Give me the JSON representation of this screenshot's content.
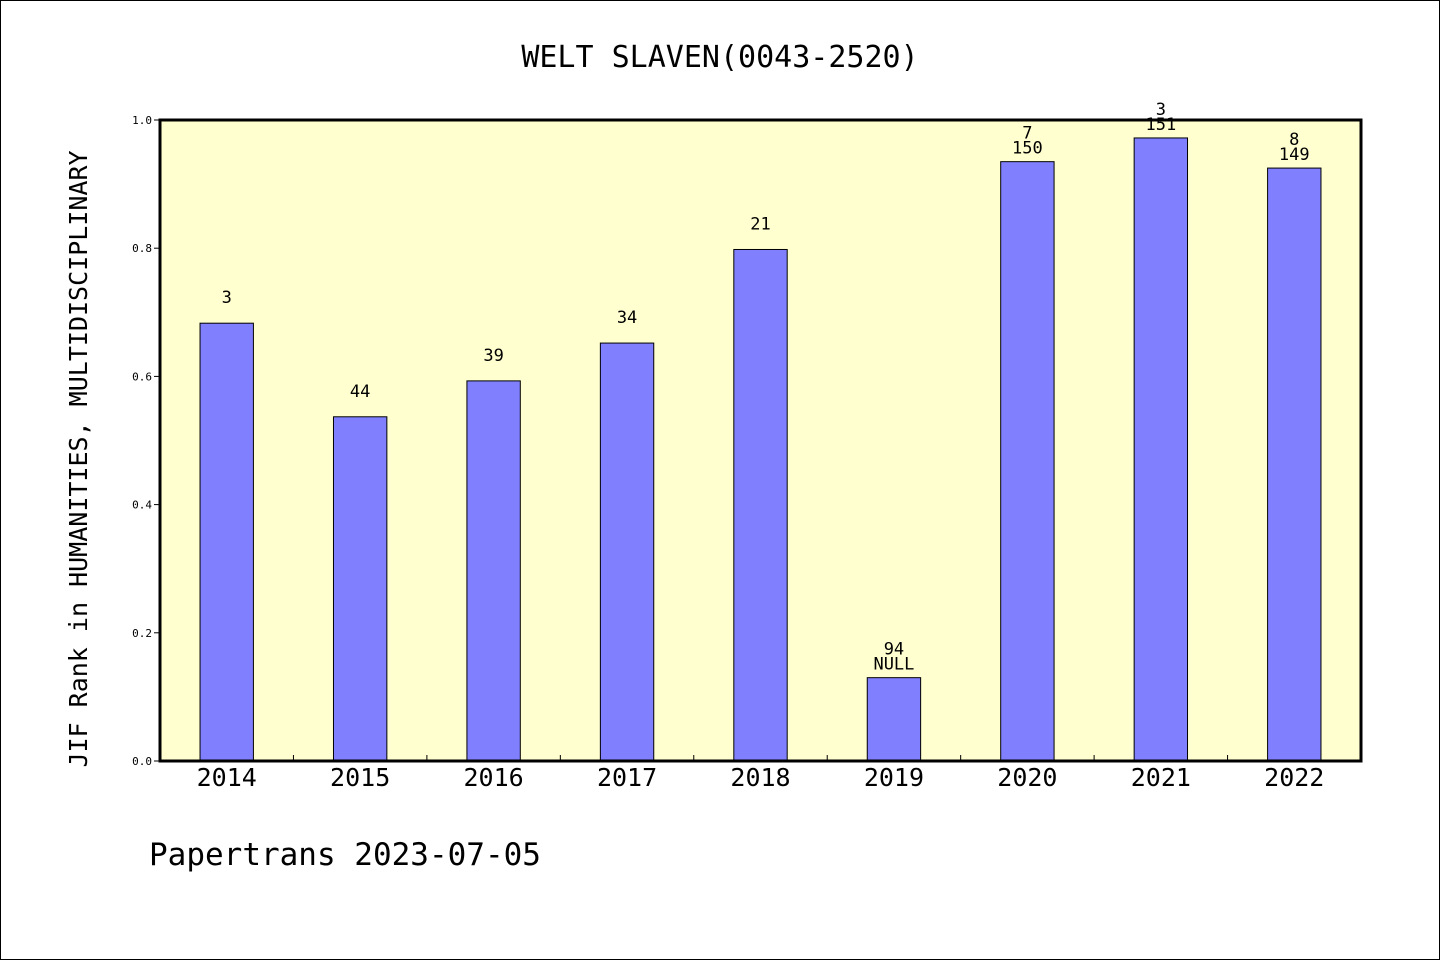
{
  "chart_data": {
    "type": "bar",
    "title": "WELT SLAVEN(0043-2520)",
    "ylabel": "JIF Rank in HUMANITIES, MULTIDISCIPLINARY",
    "xlabel": "",
    "footer": "Papertrans 2023-07-05",
    "ylim": [
      0,
      1.0
    ],
    "yticks": [
      "0.0",
      "0.2",
      "0.4",
      "0.6",
      "0.8",
      "1.0"
    ],
    "grid": false,
    "categories": [
      "2014",
      "2015",
      "2016",
      "2017",
      "2018",
      "2019",
      "2020",
      "2021",
      "2022"
    ],
    "values": [
      0.683,
      0.537,
      0.593,
      0.652,
      0.798,
      0.13,
      0.935,
      0.972,
      0.925
    ],
    "labels": [
      [
        "3"
      ],
      [
        "44"
      ],
      [
        "39"
      ],
      [
        "34"
      ],
      [
        "21"
      ],
      [
        "94",
        "NULL"
      ],
      [
        "7",
        "150"
      ],
      [
        "3",
        "151"
      ],
      [
        "8",
        "149"
      ]
    ],
    "colors": {
      "bar_fill": "#8080ff",
      "plot_background": "#ffffd0"
    }
  }
}
